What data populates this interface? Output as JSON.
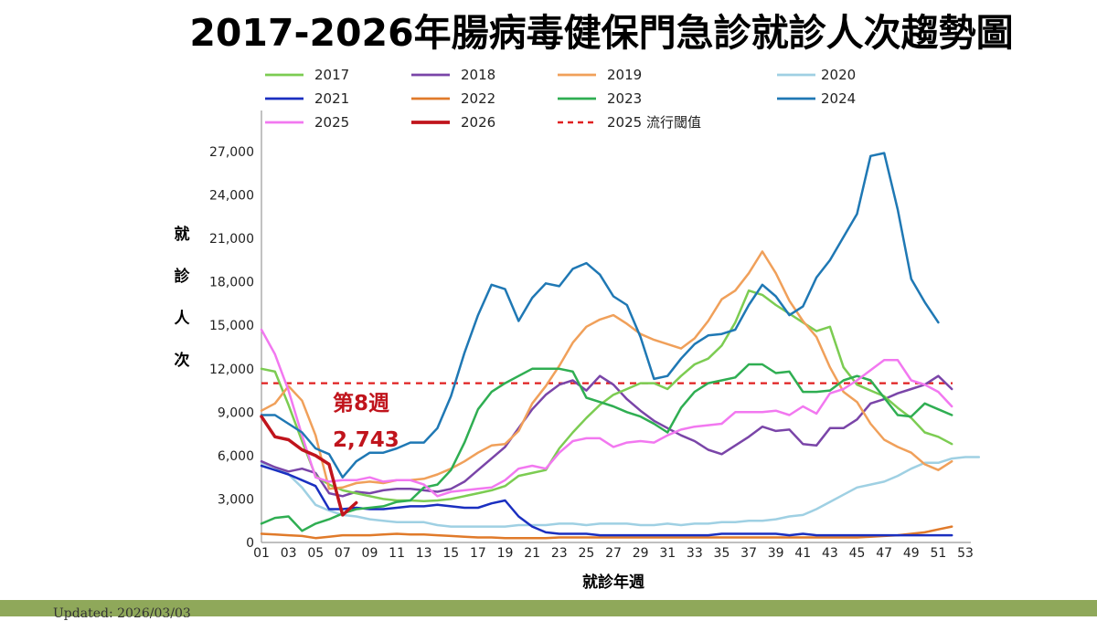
{
  "title": "2017-2026年腸病毒健保門急診就診人次趨勢圖",
  "updated": "Updated: 2026/03/03",
  "chart_data": {
    "type": "line",
    "xlabel": "就診年週",
    "ylabel": "就診人次",
    "xlim": [
      1,
      53
    ],
    "ylim": [
      0,
      27000
    ],
    "x_ticks": [
      "01",
      "03",
      "05",
      "07",
      "09",
      "11",
      "13",
      "15",
      "17",
      "19",
      "21",
      "23",
      "25",
      "27",
      "29",
      "31",
      "33",
      "35",
      "37",
      "39",
      "41",
      "43",
      "45",
      "47",
      "49",
      "51",
      "53"
    ],
    "y_ticks": [
      "0",
      "3,000",
      "6,000",
      "9,000",
      "12,000",
      "15,000",
      "18,000",
      "21,000",
      "24,000",
      "27,000"
    ],
    "legend": {
      "position": "top",
      "columns": 4,
      "threshold_label": "2025 流行閾值"
    },
    "threshold": {
      "name": "2025 流行閾值",
      "value": 11000,
      "color": "#e02020"
    },
    "annotation": {
      "lines": [
        "第8週",
        "2,743"
      ],
      "color": "#c0141c",
      "x": 8,
      "y": 2743
    },
    "series": [
      {
        "name": "2017",
        "color": "#7ccc52",
        "width": 2.5,
        "x_start": 1,
        "values": [
          12000,
          11800,
          9500,
          7000,
          4600,
          4000,
          3600,
          3400,
          3200,
          3000,
          2900,
          2900,
          2850,
          2900,
          3000,
          3200,
          3400,
          3600,
          3900,
          4600,
          4800,
          5000,
          6500,
          7600,
          8600,
          9500,
          10200,
          10600,
          11000,
          11000,
          10600,
          11500,
          12300,
          12700,
          13600,
          15200,
          17400,
          17100,
          16400,
          15800,
          15200,
          14600,
          14900,
          12100,
          10900,
          10500,
          10100,
          9300,
          8600,
          7600,
          7300,
          6800
        ]
      },
      {
        "name": "2018",
        "color": "#7a45a8",
        "width": 2.5,
        "x_start": 1,
        "values": [
          5600,
          5200,
          4900,
          5100,
          4800,
          3400,
          3200,
          3500,
          3400,
          3600,
          3700,
          3700,
          3600,
          3500,
          3700,
          4200,
          5000,
          5800,
          6600,
          7900,
          9200,
          10200,
          10900,
          11200,
          10500,
          11500,
          10900,
          9900,
          9100,
          8400,
          7900,
          7400,
          7000,
          6400,
          6100,
          6700,
          7300,
          8000,
          7700,
          7800,
          6800,
          6700,
          7900,
          7900,
          8500,
          9600,
          9900,
          10300,
          10600,
          10900,
          11500,
          10600
        ]
      },
      {
        "name": "2019",
        "color": "#f0a05a",
        "width": 2.5,
        "x_start": 1,
        "values": [
          9100,
          9600,
          10800,
          9800,
          7400,
          3700,
          3800,
          4100,
          4200,
          4100,
          4300,
          4300,
          4400,
          4700,
          5100,
          5600,
          6200,
          6700,
          6800,
          7700,
          9600,
          10800,
          12200,
          13800,
          14900,
          15400,
          15700,
          15100,
          14400,
          14000,
          13700,
          13400,
          14100,
          15300,
          16800,
          17400,
          18600,
          20100,
          18600,
          16700,
          15300,
          14200,
          12100,
          10400,
          9700,
          8200,
          7100,
          6600,
          6200,
          5400,
          5000,
          5600
        ]
      },
      {
        "name": "2020",
        "color": "#9fd0e3",
        "width": 2.5,
        "x_start": 1,
        "values": [
          5500,
          5200,
          4700,
          3800,
          2600,
          2200,
          1900,
          1800,
          1600,
          1500,
          1400,
          1400,
          1400,
          1200,
          1100,
          1100,
          1100,
          1100,
          1100,
          1200,
          1200,
          1200,
          1300,
          1300,
          1200,
          1300,
          1300,
          1300,
          1200,
          1200,
          1300,
          1200,
          1300,
          1300,
          1400,
          1400,
          1500,
          1500,
          1600,
          1800,
          1900,
          2300,
          2800,
          3300,
          3800,
          4000,
          4200,
          4600,
          5100,
          5500,
          5500,
          5800,
          5900,
          5900
        ]
      },
      {
        "name": "2021",
        "color": "#1a2fc0",
        "width": 2.5,
        "x_start": 1,
        "values": [
          5300,
          5000,
          4700,
          4300,
          3900,
          2300,
          2300,
          2400,
          2300,
          2300,
          2400,
          2500,
          2500,
          2600,
          2500,
          2400,
          2400,
          2700,
          2900,
          1800,
          1100,
          700,
          600,
          600,
          600,
          500,
          500,
          500,
          500,
          500,
          500,
          500,
          500,
          500,
          600,
          600,
          600,
          600,
          600,
          500,
          600,
          500,
          500,
          500,
          500,
          500,
          500,
          500,
          500,
          500,
          500,
          500
        ]
      },
      {
        "name": "2022",
        "color": "#e07a2a",
        "width": 2.5,
        "x_start": 1,
        "values": [
          600,
          550,
          500,
          450,
          300,
          400,
          500,
          500,
          500,
          550,
          600,
          550,
          550,
          500,
          450,
          400,
          350,
          350,
          300,
          300,
          300,
          300,
          350,
          350,
          350,
          350,
          350,
          350,
          350,
          350,
          350,
          350,
          350,
          350,
          350,
          350,
          350,
          350,
          350,
          350,
          350,
          350,
          350,
          350,
          350,
          400,
          450,
          500,
          600,
          700,
          900,
          1100
        ]
      },
      {
        "name": "2023",
        "color": "#2fae52",
        "width": 2.5,
        "x_start": 1,
        "values": [
          1300,
          1700,
          1800,
          800,
          1300,
          1600,
          2000,
          2300,
          2400,
          2500,
          2800,
          2900,
          3800,
          4000,
          5000,
          6900,
          9200,
          10400,
          11000,
          11500,
          12000,
          12000,
          12000,
          11800,
          10000,
          9700,
          9400,
          9000,
          8700,
          8200,
          7600,
          9300,
          10400,
          11000,
          11200,
          11400,
          12300,
          12300,
          11700,
          11800,
          10400,
          10400,
          10500,
          11200,
          11500,
          11200,
          10000,
          8800,
          8700,
          9600,
          9200,
          8800
        ]
      },
      {
        "name": "2024",
        "color": "#1f78b4",
        "width": 2.5,
        "x_start": 1,
        "values": [
          8800,
          8800,
          8200,
          7600,
          6500,
          6100,
          4500,
          5600,
          6200,
          6200,
          6500,
          6900,
          6900,
          7900,
          10100,
          13100,
          15700,
          17800,
          17500,
          15300,
          16900,
          17900,
          17700,
          18900,
          19300,
          18500,
          17000,
          16400,
          14200,
          11300,
          11500,
          12700,
          13700,
          14300,
          14400,
          14700,
          16400,
          17800,
          17000,
          15700,
          16300,
          18300,
          19500,
          21100,
          22700,
          26700,
          26900,
          23000,
          18200,
          16600,
          15200
        ]
      },
      {
        "name": "2025",
        "color": "#f278f0",
        "width": 2.5,
        "x_start": 1,
        "values": [
          14700,
          13000,
          10500,
          7400,
          4500,
          4200,
          4300,
          4300,
          4500,
          4200,
          4300,
          4300,
          4000,
          3200,
          3500,
          3600,
          3700,
          3800,
          4300,
          5100,
          5300,
          5100,
          6200,
          7000,
          7200,
          7200,
          6600,
          6900,
          7000,
          6900,
          7400,
          7800,
          8000,
          8100,
          8200,
          9000,
          9000,
          9000,
          9100,
          8800,
          9400,
          8900,
          10300,
          10600,
          11200,
          11900,
          12600,
          12600,
          11200,
          10900,
          10400,
          9400
        ]
      },
      {
        "name": "2026",
        "color": "#c0141c",
        "width": 3.5,
        "x_start": 1,
        "values": [
          8700,
          7300,
          7100,
          6400,
          6000,
          5400,
          1900,
          2743
        ]
      }
    ]
  }
}
